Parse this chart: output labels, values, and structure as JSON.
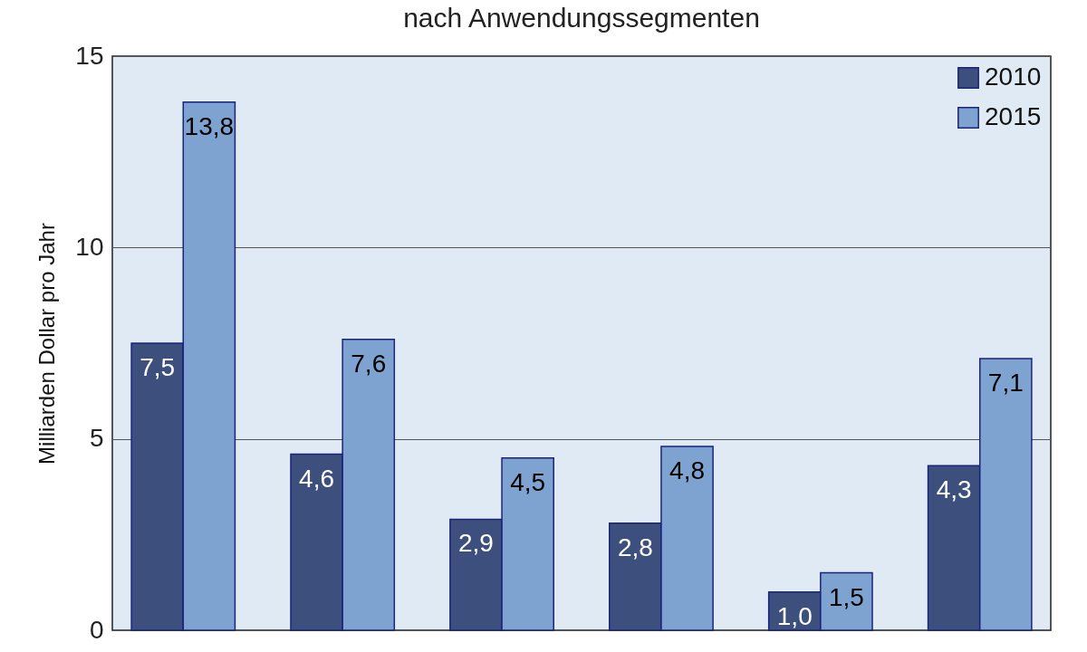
{
  "chart_data": {
    "type": "bar",
    "title": "nach Anwendungssegmenten",
    "ylabel": "Milliarden Dollar pro Jahr",
    "categories": [
      null,
      null,
      null,
      null,
      null,
      null
    ],
    "series": [
      {
        "name": "2010",
        "color": "#3d4f7d",
        "values": [
          7.5,
          4.6,
          2.9,
          2.8,
          1.0,
          4.3
        ],
        "value_labels": [
          "7,5",
          "4,6",
          "2,9",
          "2,8",
          "1,0",
          "4,3"
        ]
      },
      {
        "name": "2015",
        "color": "#7ea3d0",
        "values": [
          13.8,
          7.6,
          4.5,
          4.8,
          1.5,
          7.1
        ],
        "value_labels": [
          "13,8",
          "7,6",
          "4,5",
          "4,8",
          "1,5",
          "7,1"
        ]
      }
    ],
    "ylim": [
      0,
      15
    ],
    "yticks": [
      0,
      5,
      10,
      15
    ],
    "grid": "y",
    "legend": "top right",
    "tick_labels": "y"
  }
}
